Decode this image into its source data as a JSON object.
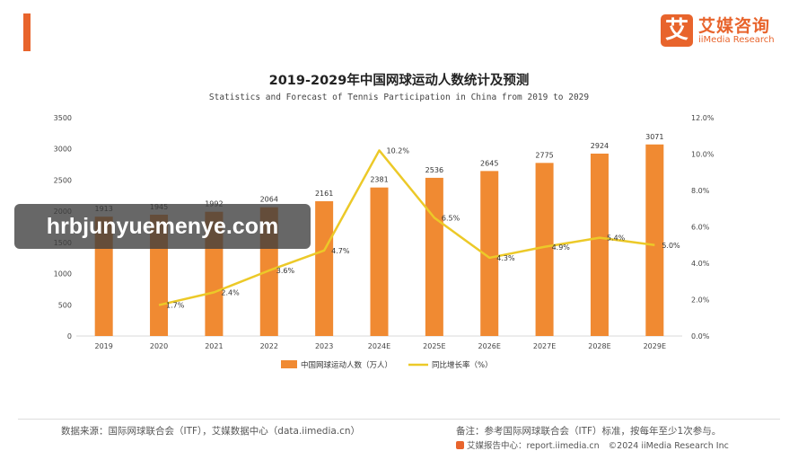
{
  "brand": {
    "mark": "艾",
    "name_cn": "艾媒咨询",
    "name_en": "iiMedia Research"
  },
  "colors": {
    "bar": "#f08a32",
    "line": "#ecc928",
    "accent": "#e8642c"
  },
  "watermark": "hrbjunyuemenye.com",
  "chart_data": {
    "type": "bar",
    "title": "2019-2029年中国网球运动人数统计及预测",
    "subtitle": "Statistics and Forecast of Tennis Participation in China from 2019 to 2029",
    "categories": [
      "2019",
      "2020",
      "2021",
      "2022",
      "2023",
      "2024E",
      "2025E",
      "2026E",
      "2027E",
      "2028E",
      "2029E"
    ],
    "series": [
      {
        "name": "中国网球运动人数（万人）",
        "type": "bar",
        "axis": "left",
        "values": [
          1913,
          1945,
          1992,
          2064,
          2161,
          2381,
          2536,
          2645,
          2775,
          2924,
          3071
        ]
      },
      {
        "name": "同比增长率（%）",
        "type": "line",
        "axis": "right",
        "values": [
          null,
          1.7,
          2.4,
          3.6,
          4.7,
          10.2,
          6.5,
          4.3,
          4.9,
          5.4,
          5.0
        ],
        "labels": [
          "",
          "1.7%",
          "2.4%",
          "3.6%",
          "4.7%",
          "10.2%",
          "6.5%",
          "4.3%",
          "4.9%",
          "5.4%",
          "5.0%"
        ]
      }
    ],
    "ylim_left": [
      0,
      3500
    ],
    "yticks_left": [
      "0",
      "500",
      "1000",
      "1500",
      "2000",
      "2500",
      "3000",
      "3500"
    ],
    "ylim_right": [
      0,
      12
    ],
    "yticks_right": [
      "0.0%",
      "2.0%",
      "4.0%",
      "6.0%",
      "8.0%",
      "10.0%",
      "12.0%"
    ],
    "legend_position": "bottom-center",
    "grid": false
  },
  "footer": {
    "source": "数据来源：国际网球联合会（ITF），艾媒数据中心（data.iimedia.cn）",
    "note": "备注：参考国际网球联合会（ITF）标准，按每年至少1次参与。",
    "report_center": "艾媒报告中心：report.iimedia.cn",
    "copyright": "©2024  iiMedia Research  Inc"
  }
}
